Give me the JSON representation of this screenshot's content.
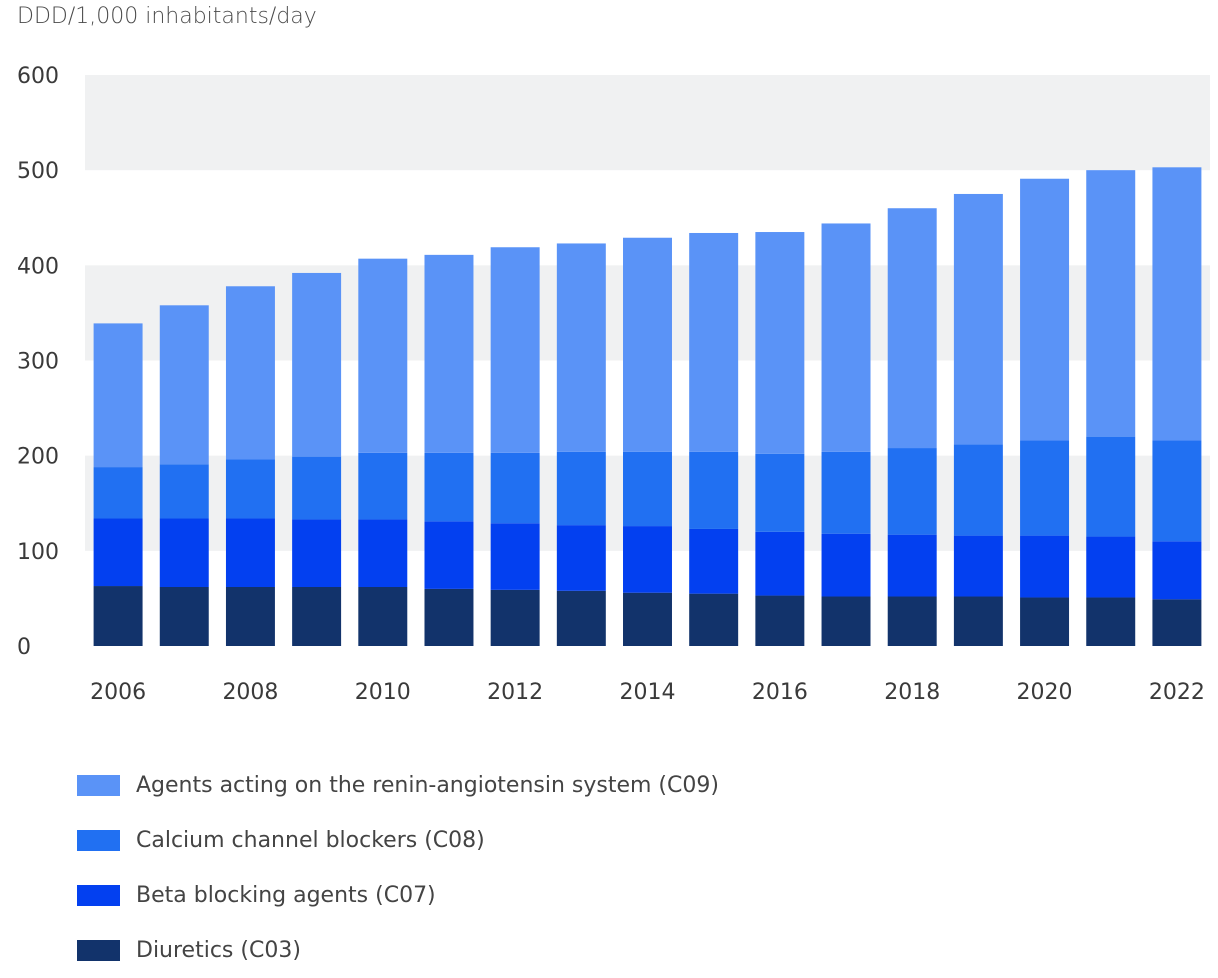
{
  "chart_data": {
    "type": "bar",
    "stacked": true,
    "ylabel": "DDD/1,000 inhabitants/day",
    "xlabel": "",
    "ylim": [
      0,
      600
    ],
    "yticks": [
      "0",
      "100",
      "200",
      "300",
      "400",
      "500",
      "600"
    ],
    "xtick_labels": [
      "2006",
      "2008",
      "2010",
      "2012",
      "2014",
      "2016",
      "2018",
      "2020",
      "2022"
    ],
    "categories": [
      "2006",
      "2007",
      "2008",
      "2009",
      "2010",
      "2011",
      "2012",
      "2013",
      "2014",
      "2015",
      "2016",
      "2017",
      "2018",
      "2019",
      "2020",
      "2021",
      "2022"
    ],
    "grid_bands": true,
    "legend_placement": "bottom",
    "series": [
      {
        "name": "Diuretics (C03)",
        "color": "#12336b",
        "values": [
          63,
          62,
          62,
          62,
          62,
          60,
          59,
          58,
          56,
          55,
          53,
          52,
          52,
          52,
          51,
          51,
          49
        ]
      },
      {
        "name": "Beta blocking agents (C07)",
        "color": "#0340f0",
        "values": [
          71,
          72,
          72,
          71,
          71,
          71,
          70,
          69,
          70,
          68,
          67,
          66,
          65,
          64,
          65,
          64,
          61
        ]
      },
      {
        "name": "Calcium channel blockers (C08)",
        "color": "#2170f2",
        "values": [
          54,
          57,
          62,
          66,
          70,
          72,
          74,
          77,
          78,
          81,
          82,
          86,
          91,
          96,
          100,
          105,
          106
        ]
      },
      {
        "name": "Agents acting on the renin-angiotensin system (C09)",
        "color": "#5a93f7",
        "values": [
          151,
          167,
          182,
          193,
          204,
          208,
          216,
          219,
          225,
          230,
          233,
          240,
          252,
          263,
          275,
          280,
          287
        ]
      }
    ],
    "legend_order": [
      3,
      2,
      1,
      0
    ]
  }
}
